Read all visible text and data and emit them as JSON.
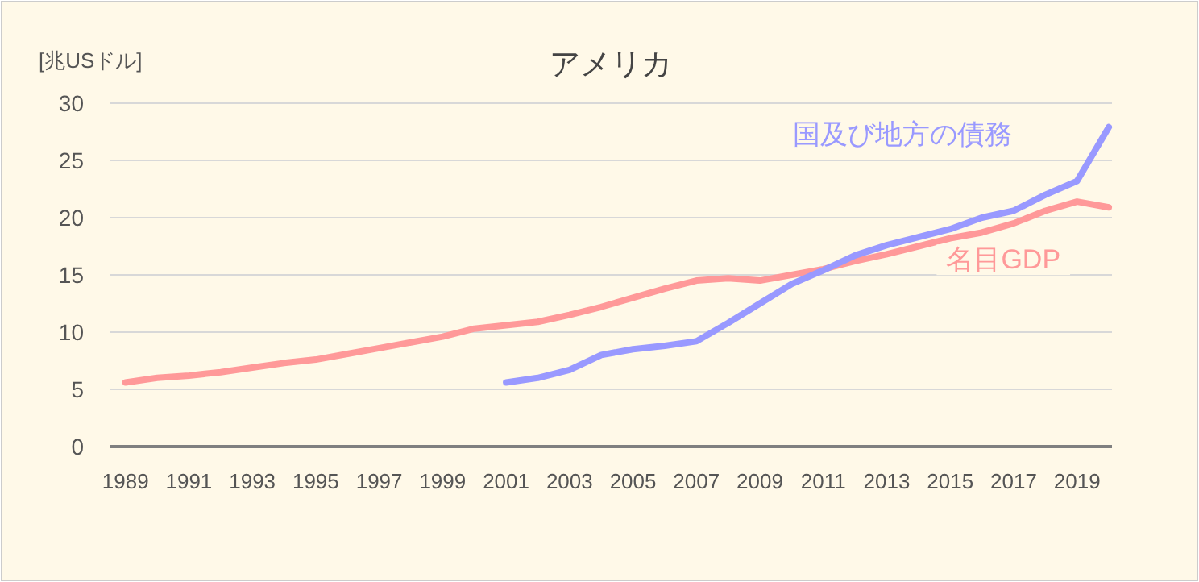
{
  "chart_data": {
    "type": "line",
    "title": "アメリカ",
    "ylabel": "[兆USドル]",
    "x": [
      1989,
      1990,
      1991,
      1992,
      1993,
      1994,
      1995,
      1996,
      1997,
      1998,
      1999,
      2000,
      2001,
      2002,
      2003,
      2004,
      2005,
      2006,
      2007,
      2008,
      2009,
      2010,
      2011,
      2012,
      2013,
      2014,
      2015,
      2016,
      2017,
      2018,
      2019,
      2020
    ],
    "series": [
      {
        "name": "名目GDP",
        "color": "#ff9999",
        "values": [
          5.6,
          6.0,
          6.2,
          6.5,
          6.9,
          7.3,
          7.6,
          8.1,
          8.6,
          9.1,
          9.6,
          10.3,
          10.6,
          10.9,
          11.5,
          12.2,
          13.0,
          13.8,
          14.5,
          14.7,
          14.5,
          15.0,
          15.5,
          16.2,
          16.8,
          17.5,
          18.2,
          18.7,
          19.5,
          20.6,
          21.4,
          20.9
        ]
      },
      {
        "name": "国及び地方の債務",
        "color": "#9999ff",
        "values": [
          null,
          null,
          null,
          null,
          null,
          null,
          null,
          null,
          null,
          null,
          null,
          null,
          5.6,
          6.0,
          6.7,
          8.0,
          8.5,
          8.8,
          9.2,
          10.8,
          12.5,
          14.2,
          15.4,
          16.7,
          17.6,
          18.3,
          19.0,
          20.0,
          20.6,
          22.0,
          23.2,
          27.9
        ]
      }
    ],
    "xlim": [
      1988.5,
      2020.1
    ],
    "xticks": [
      1989,
      1991,
      1993,
      1995,
      1997,
      1999,
      2001,
      2003,
      2005,
      2007,
      2009,
      2011,
      2013,
      2015,
      2017,
      2019
    ],
    "ylim": [
      0,
      30
    ],
    "yticks": [
      0,
      5,
      10,
      15,
      20,
      25,
      30
    ],
    "grid": "y",
    "legend": false,
    "marker": "none",
    "line_style": "solid"
  }
}
